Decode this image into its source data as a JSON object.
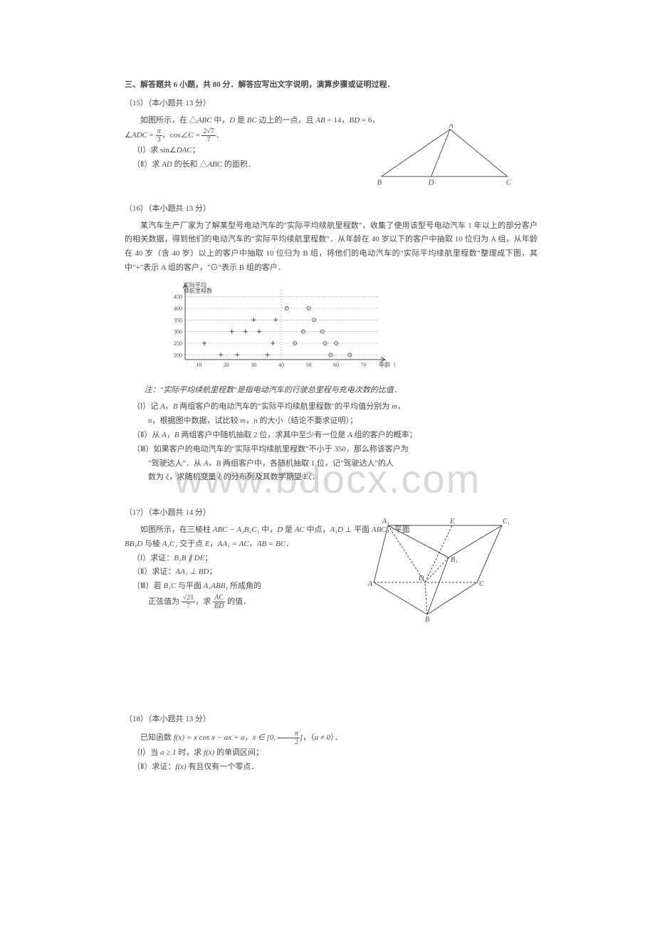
{
  "watermark": "www.bdocx.com",
  "section_header": "三、解答题共 6 小题，共 80 分．解答应写出文字说明，演算步骤或证明过程．",
  "p15": {
    "num": "（15）（本小题共 13 分）",
    "line1_a": "如图所示，在 △",
    "line1_b": "ABC",
    "line1_c": " 中，",
    "line1_d": "D",
    "line1_e": " 是 ",
    "line1_f": "BC",
    "line1_g": " 边上的一点，且 ",
    "line1_h": "AB",
    "line1_i": " = 14，",
    "line1_j": "BD",
    "line1_k": " = 6，",
    "formula_a": "∠",
    "formula_b": "ADC",
    "formula_c": " = ",
    "formula_pi": "π",
    "formula_3": "3",
    "formula_d": "，cos∠",
    "formula_e": "C",
    "formula_f": " = ",
    "formula_num": "2√7",
    "formula_den": "7",
    "formula_g": "．",
    "q1_a": "（Ⅰ）求 sin∠",
    "q1_b": "DAC",
    "q1_c": "；",
    "q2_a": "（Ⅱ）求 ",
    "q2_b": "AD",
    "q2_c": " 的长和 △",
    "q2_d": "ABC",
    "q2_e": " 的面积．",
    "fig": {
      "labels": {
        "A": "A",
        "B": "B",
        "C": "C",
        "D": "D"
      },
      "points": {
        "A": [
          110,
          8
        ],
        "B": [
          8,
          78
        ],
        "D": [
          82,
          78
        ],
        "C": [
          195,
          78
        ]
      },
      "stroke": "#4a4a4a"
    }
  },
  "p16": {
    "num": "（16）（本小题共 13 分）",
    "para1": "某汽车生产厂家为了解某型号电动汽车的\"实际平均续航里程数\"，收集了使用该型号电动汽车 1 年以上的部分客户的相关数据，得到他们的电动汽车的\"实际平均续航里程数\"．从年龄在 40 岁以下的客户中抽取 10 位归为 A 组，从年龄在 40 岁（含 40 岁）以上的客户中抽取 10 位归为 B 组，将他们的电动汽车的\"实际平均续航里程数\"整理成下图，其中\"+\"表示 A 组的客户，\"⊙\"表示 B 组的客户．",
    "chart": {
      "ylabel": "实际平均\n续航里程数",
      "xlabel": "年龄（岁）",
      "y_ticks": [
        200,
        250,
        300,
        350,
        400,
        450
      ],
      "x_ticks": [
        10,
        20,
        30,
        40,
        50,
        60,
        70
      ],
      "x_range": [
        5,
        75
      ],
      "y_range": [
        180,
        470
      ],
      "axis_color": "#4a4a4a",
      "dash_color": "#808080",
      "plus_points": [
        [
          12,
          250
        ],
        [
          18,
          200
        ],
        [
          22,
          300
        ],
        [
          24,
          200
        ],
        [
          27,
          300
        ],
        [
          30,
          350
        ],
        [
          32,
          300
        ],
        [
          35,
          200
        ],
        [
          37,
          250
        ],
        [
          38,
          350
        ]
      ],
      "circle_points": [
        [
          42,
          400
        ],
        [
          45,
          250
        ],
        [
          48,
          300
        ],
        [
          50,
          400
        ],
        [
          52,
          350
        ],
        [
          55,
          300
        ],
        [
          56,
          250
        ],
        [
          58,
          200
        ],
        [
          60,
          250
        ],
        [
          65,
          200
        ]
      ]
    },
    "note": "注：\"实际平均续航里程数\"是指电动汽车的行驶总里程与充电次数的比值．",
    "q1_a": "（Ⅰ）记 ",
    "q1_b": "A",
    "q1_c": "，",
    "q1_d": "B",
    "q1_e": " 两组客户的电动汽车的\"实际平均续航里程数\"的平均值分别为 ",
    "q1_f": "m",
    "q1_g": "，",
    "q1_2a": "n",
    "q1_2b": "，根据图中数据，试比较 ",
    "q1_2c": "m",
    "q1_2d": "，",
    "q1_2e": "n",
    "q1_2f": " 的大小（结论不要求证明）；",
    "q2_a": "（Ⅱ）从 ",
    "q2_b": "A",
    "q2_c": "，",
    "q2_d": "B",
    "q2_e": " 两组客户中随机抽取 2 位，求其中至少有一位是 ",
    "q2_f": "A",
    "q2_g": " 组的客户的概率；",
    "q3_a": "（Ⅲ）如果客户的电动汽车的\"实际平均续航里程数\"不小于 350，那么称该客户为",
    "q3_2a": "\"驾驶达人\"．从 ",
    "q3_2b": "A",
    "q3_2c": "，",
    "q3_2d": "B",
    "q3_2e": " 两组客户中，各随机抽取 1 位，记\"驾驶达人\"的人",
    "q3_3a": "数为 ",
    "q3_3b": "ξ",
    "q3_3c": "，求随机变量 ",
    "q3_3d": "ξ",
    "q3_3e": " 的分布列及其数学期望 ",
    "q3_3f": "Eξ",
    "q3_3g": "．"
  },
  "p17": {
    "num": "（17）（本小题共 14 分）",
    "line1_a": "如图所示，在三棱柱 ",
    "line1_b": "ABC − A₁B₁C₁",
    "line1_c": " 中，",
    "line1_d": "D",
    "line1_e": " 是 ",
    "line1_f": "AC",
    "line1_g": " 中点，",
    "line1_h": "A₁D",
    "line1_i": " ⊥ 平面 ",
    "line1_j": "ABC",
    "line1_k": "，平面",
    "line2_a": "BB₁D",
    "line2_b": " 与棱 ",
    "line2_c": "A₁C₁",
    "line2_d": " 交于点 ",
    "line2_e": "E",
    "line2_f": "，",
    "line2_g": "AA₁ = AC",
    "line2_h": "，",
    "line2_i": "AB = BC",
    "line2_j": "．",
    "q1_a": "（Ⅰ）求证：",
    "q1_b": "B₁B ∥ DE",
    "q1_c": "；",
    "q2_a": "（Ⅱ）求证：",
    "q2_b": "AA₁ ⊥ BD",
    "q2_c": "；",
    "q3_a": "（Ⅲ）若 ",
    "q3_b": "B₁C",
    "q3_c": " 与平面 ",
    "q3_d": "A₁ABB₁",
    "q3_e": " 所成角的",
    "q3_2a": "正弦值为 ",
    "q3_num": "√21",
    "q3_den": "7",
    "q3_2b": "，求 ",
    "q3_ac": "AC",
    "q3_bd": "BD",
    "q3_2c": " 的值．",
    "fig": {
      "labels": {
        "A1": "A₁",
        "B1": "B₁",
        "C1": "C₁",
        "A": "A",
        "B": "B",
        "C": "C",
        "D": "D",
        "E": "E"
      },
      "stroke": "#4a4a4a"
    }
  },
  "p18": {
    "num": "（18）（本小题共 13 分）",
    "line1_a": "已知函数 ",
    "line1_b": "f(x) = x cos x − ax + a",
    "line1_c": "，",
    "line1_d": "x ∈ [0, ",
    "line1_pi": "π",
    "line1_2": "2",
    "line1_e": "]",
    "line1_f": "，（",
    "line1_g": "a ≠ 0",
    "line1_h": "）．",
    "q1_a": "（Ⅰ）当 ",
    "q1_b": "a ≥ 1",
    "q1_c": " 时，求 ",
    "q1_d": "f(x)",
    "q1_e": " 的单调区间；",
    "q2_a": "（Ⅱ）求证：",
    "q2_b": "f(x)",
    "q2_c": " 有且仅有一个零点．"
  }
}
